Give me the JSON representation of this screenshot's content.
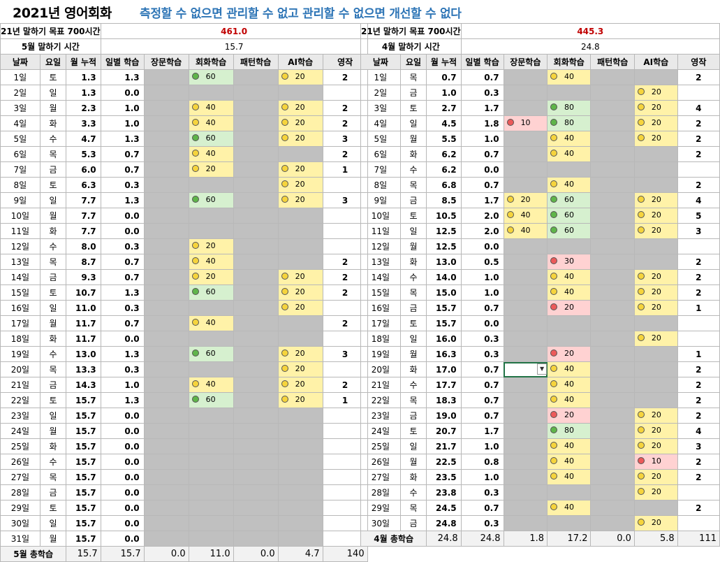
{
  "title": "2021년 영어회화",
  "slogan": "측정할 수 없으면  관리할 수 없고 관리할 수 없으면 개선할 수 없다",
  "columns": [
    "날짜",
    "요일",
    "월 누적",
    "일별 학습",
    "장문학습",
    "회화학습",
    "패턴학습",
    "AI학습",
    "영작"
  ],
  "may": {
    "goal_label": "21년 말하기 목표 700시간",
    "goal_value": "461.0",
    "month_label": "5월 말하기 시간",
    "month_value": "15.7",
    "rows": [
      {
        "day": "1일",
        "dow": "토",
        "cum": "1.3",
        "daily": "1.3",
        "long": null,
        "conv": {
          "v": "60",
          "c": "green"
        },
        "pattern": null,
        "ai": {
          "v": "20",
          "c": "yellow"
        },
        "comp": "2"
      },
      {
        "day": "2일",
        "dow": "일",
        "cum": "1.3",
        "daily": "0.0",
        "long": null,
        "conv": null,
        "pattern": null,
        "ai": null,
        "comp": ""
      },
      {
        "day": "3일",
        "dow": "월",
        "cum": "2.3",
        "daily": "1.0",
        "long": null,
        "conv": {
          "v": "40",
          "c": "yellow"
        },
        "pattern": null,
        "ai": {
          "v": "20",
          "c": "yellow"
        },
        "comp": "2"
      },
      {
        "day": "4일",
        "dow": "화",
        "cum": "3.3",
        "daily": "1.0",
        "long": null,
        "conv": {
          "v": "40",
          "c": "yellow"
        },
        "pattern": null,
        "ai": {
          "v": "20",
          "c": "yellow"
        },
        "comp": "2"
      },
      {
        "day": "5일",
        "dow": "수",
        "cum": "4.7",
        "daily": "1.3",
        "long": null,
        "conv": {
          "v": "60",
          "c": "green"
        },
        "pattern": null,
        "ai": {
          "v": "20",
          "c": "yellow"
        },
        "comp": "3"
      },
      {
        "day": "6일",
        "dow": "목",
        "cum": "5.3",
        "daily": "0.7",
        "long": null,
        "conv": {
          "v": "40",
          "c": "yellow"
        },
        "pattern": null,
        "ai": null,
        "comp": "2"
      },
      {
        "day": "7일",
        "dow": "금",
        "cum": "6.0",
        "daily": "0.7",
        "long": null,
        "conv": {
          "v": "20",
          "c": "yellow"
        },
        "pattern": null,
        "ai": {
          "v": "20",
          "c": "yellow"
        },
        "comp": "1"
      },
      {
        "day": "8일",
        "dow": "토",
        "cum": "6.3",
        "daily": "0.3",
        "long": null,
        "conv": null,
        "pattern": null,
        "ai": {
          "v": "20",
          "c": "yellow"
        },
        "comp": ""
      },
      {
        "day": "9일",
        "dow": "일",
        "cum": "7.7",
        "daily": "1.3",
        "long": null,
        "conv": {
          "v": "60",
          "c": "green"
        },
        "pattern": null,
        "ai": {
          "v": "20",
          "c": "yellow"
        },
        "comp": "3"
      },
      {
        "day": "10일",
        "dow": "월",
        "cum": "7.7",
        "daily": "0.0",
        "long": null,
        "conv": null,
        "pattern": null,
        "ai": null,
        "comp": ""
      },
      {
        "day": "11일",
        "dow": "화",
        "cum": "7.7",
        "daily": "0.0",
        "long": null,
        "conv": null,
        "pattern": null,
        "ai": null,
        "comp": ""
      },
      {
        "day": "12일",
        "dow": "수",
        "cum": "8.0",
        "daily": "0.3",
        "long": null,
        "conv": {
          "v": "20",
          "c": "yellow"
        },
        "pattern": null,
        "ai": null,
        "comp": ""
      },
      {
        "day": "13일",
        "dow": "목",
        "cum": "8.7",
        "daily": "0.7",
        "long": null,
        "conv": {
          "v": "40",
          "c": "yellow"
        },
        "pattern": null,
        "ai": null,
        "comp": "2"
      },
      {
        "day": "14일",
        "dow": "금",
        "cum": "9.3",
        "daily": "0.7",
        "long": null,
        "conv": {
          "v": "20",
          "c": "yellow"
        },
        "pattern": null,
        "ai": {
          "v": "20",
          "c": "yellow"
        },
        "comp": "2"
      },
      {
        "day": "15일",
        "dow": "토",
        "cum": "10.7",
        "daily": "1.3",
        "long": null,
        "conv": {
          "v": "60",
          "c": "green"
        },
        "pattern": null,
        "ai": {
          "v": "20",
          "c": "yellow"
        },
        "comp": "2"
      },
      {
        "day": "16일",
        "dow": "일",
        "cum": "11.0",
        "daily": "0.3",
        "long": null,
        "conv": null,
        "pattern": null,
        "ai": {
          "v": "20",
          "c": "yellow"
        },
        "comp": ""
      },
      {
        "day": "17일",
        "dow": "월",
        "cum": "11.7",
        "daily": "0.7",
        "long": null,
        "conv": {
          "v": "40",
          "c": "yellow"
        },
        "pattern": null,
        "ai": null,
        "comp": "2"
      },
      {
        "day": "18일",
        "dow": "화",
        "cum": "11.7",
        "daily": "0.0",
        "long": null,
        "conv": null,
        "pattern": null,
        "ai": null,
        "comp": ""
      },
      {
        "day": "19일",
        "dow": "수",
        "cum": "13.0",
        "daily": "1.3",
        "long": null,
        "conv": {
          "v": "60",
          "c": "green"
        },
        "pattern": null,
        "ai": {
          "v": "20",
          "c": "yellow"
        },
        "comp": "3"
      },
      {
        "day": "20일",
        "dow": "목",
        "cum": "13.3",
        "daily": "0.3",
        "long": null,
        "conv": null,
        "pattern": null,
        "ai": {
          "v": "20",
          "c": "yellow"
        },
        "comp": ""
      },
      {
        "day": "21일",
        "dow": "금",
        "cum": "14.3",
        "daily": "1.0",
        "long": null,
        "conv": {
          "v": "40",
          "c": "yellow"
        },
        "pattern": null,
        "ai": {
          "v": "20",
          "c": "yellow"
        },
        "comp": "2"
      },
      {
        "day": "22일",
        "dow": "토",
        "cum": "15.7",
        "daily": "1.3",
        "long": null,
        "conv": {
          "v": "60",
          "c": "green"
        },
        "pattern": null,
        "ai": {
          "v": "20",
          "c": "yellow"
        },
        "comp": "1"
      },
      {
        "day": "23일",
        "dow": "일",
        "cum": "15.7",
        "daily": "0.0",
        "long": null,
        "conv": null,
        "pattern": null,
        "ai": null,
        "comp": ""
      },
      {
        "day": "24일",
        "dow": "월",
        "cum": "15.7",
        "daily": "0.0",
        "long": null,
        "conv": null,
        "pattern": null,
        "ai": null,
        "comp": ""
      },
      {
        "day": "25일",
        "dow": "화",
        "cum": "15.7",
        "daily": "0.0",
        "long": null,
        "conv": null,
        "pattern": null,
        "ai": null,
        "comp": ""
      },
      {
        "day": "26일",
        "dow": "수",
        "cum": "15.7",
        "daily": "0.0",
        "long": null,
        "conv": null,
        "pattern": null,
        "ai": null,
        "comp": ""
      },
      {
        "day": "27일",
        "dow": "목",
        "cum": "15.7",
        "daily": "0.0",
        "long": null,
        "conv": null,
        "pattern": null,
        "ai": null,
        "comp": ""
      },
      {
        "day": "28일",
        "dow": "금",
        "cum": "15.7",
        "daily": "0.0",
        "long": null,
        "conv": null,
        "pattern": null,
        "ai": null,
        "comp": ""
      },
      {
        "day": "29일",
        "dow": "토",
        "cum": "15.7",
        "daily": "0.0",
        "long": null,
        "conv": null,
        "pattern": null,
        "ai": null,
        "comp": ""
      },
      {
        "day": "30일",
        "dow": "일",
        "cum": "15.7",
        "daily": "0.0",
        "long": null,
        "conv": null,
        "pattern": null,
        "ai": null,
        "comp": ""
      },
      {
        "day": "31일",
        "dow": "월",
        "cum": "15.7",
        "daily": "0.0",
        "long": null,
        "conv": null,
        "pattern": null,
        "ai": null,
        "comp": ""
      }
    ],
    "totals": {
      "label": "5월 총학습",
      "cum": "15.7",
      "daily": "15.7",
      "long": "0.0",
      "conv": "11.0",
      "pattern": "0.0",
      "ai": "4.7",
      "comp": "140"
    }
  },
  "apr": {
    "goal_label": "21년 말하기 목표 700시간",
    "goal_value": "445.3",
    "month_label": "4월 말하기 시간",
    "month_value": "24.8",
    "rows": [
      {
        "day": "1일",
        "dow": "목",
        "cum": "0.7",
        "daily": "0.7",
        "long": null,
        "conv": {
          "v": "40",
          "c": "yellow"
        },
        "pattern": null,
        "ai": null,
        "comp": "2"
      },
      {
        "day": "2일",
        "dow": "금",
        "cum": "1.0",
        "daily": "0.3",
        "long": null,
        "conv": null,
        "pattern": null,
        "ai": {
          "v": "20",
          "c": "yellow"
        },
        "comp": ""
      },
      {
        "day": "3일",
        "dow": "토",
        "cum": "2.7",
        "daily": "1.7",
        "long": null,
        "conv": {
          "v": "80",
          "c": "green"
        },
        "pattern": null,
        "ai": {
          "v": "20",
          "c": "yellow"
        },
        "comp": "4"
      },
      {
        "day": "4일",
        "dow": "일",
        "cum": "4.5",
        "daily": "1.8",
        "long": {
          "v": "10",
          "c": "red"
        },
        "conv": {
          "v": "80",
          "c": "green"
        },
        "pattern": null,
        "ai": {
          "v": "20",
          "c": "yellow"
        },
        "comp": "2"
      },
      {
        "day": "5일",
        "dow": "월",
        "cum": "5.5",
        "daily": "1.0",
        "long": null,
        "conv": {
          "v": "40",
          "c": "yellow"
        },
        "pattern": null,
        "ai": {
          "v": "20",
          "c": "yellow"
        },
        "comp": "2"
      },
      {
        "day": "6일",
        "dow": "화",
        "cum": "6.2",
        "daily": "0.7",
        "long": null,
        "conv": {
          "v": "40",
          "c": "yellow"
        },
        "pattern": null,
        "ai": null,
        "comp": "2"
      },
      {
        "day": "7일",
        "dow": "수",
        "cum": "6.2",
        "daily": "0.0",
        "long": null,
        "conv": null,
        "pattern": null,
        "ai": null,
        "comp": ""
      },
      {
        "day": "8일",
        "dow": "목",
        "cum": "6.8",
        "daily": "0.7",
        "long": null,
        "conv": {
          "v": "40",
          "c": "yellow"
        },
        "pattern": null,
        "ai": null,
        "comp": "2"
      },
      {
        "day": "9일",
        "dow": "금",
        "cum": "8.5",
        "daily": "1.7",
        "long": {
          "v": "20",
          "c": "yellow"
        },
        "conv": {
          "v": "60",
          "c": "green"
        },
        "pattern": null,
        "ai": {
          "v": "20",
          "c": "yellow"
        },
        "comp": "4"
      },
      {
        "day": "10일",
        "dow": "토",
        "cum": "10.5",
        "daily": "2.0",
        "long": {
          "v": "40",
          "c": "yellow"
        },
        "conv": {
          "v": "60",
          "c": "green"
        },
        "pattern": null,
        "ai": {
          "v": "20",
          "c": "yellow"
        },
        "comp": "5"
      },
      {
        "day": "11일",
        "dow": "일",
        "cum": "12.5",
        "daily": "2.0",
        "long": {
          "v": "40",
          "c": "yellow"
        },
        "conv": {
          "v": "60",
          "c": "green"
        },
        "pattern": null,
        "ai": {
          "v": "20",
          "c": "yellow"
        },
        "comp": "3"
      },
      {
        "day": "12일",
        "dow": "월",
        "cum": "12.5",
        "daily": "0.0",
        "long": null,
        "conv": null,
        "pattern": null,
        "ai": null,
        "comp": ""
      },
      {
        "day": "13일",
        "dow": "화",
        "cum": "13.0",
        "daily": "0.5",
        "long": null,
        "conv": {
          "v": "30",
          "c": "red"
        },
        "pattern": null,
        "ai": null,
        "comp": "2"
      },
      {
        "day": "14일",
        "dow": "수",
        "cum": "14.0",
        "daily": "1.0",
        "long": null,
        "conv": {
          "v": "40",
          "c": "yellow"
        },
        "pattern": null,
        "ai": {
          "v": "20",
          "c": "yellow"
        },
        "comp": "2"
      },
      {
        "day": "15일",
        "dow": "목",
        "cum": "15.0",
        "daily": "1.0",
        "long": null,
        "conv": {
          "v": "40",
          "c": "yellow"
        },
        "pattern": null,
        "ai": {
          "v": "20",
          "c": "yellow"
        },
        "comp": "2"
      },
      {
        "day": "16일",
        "dow": "금",
        "cum": "15.7",
        "daily": "0.7",
        "long": null,
        "conv": {
          "v": "20",
          "c": "red"
        },
        "pattern": null,
        "ai": {
          "v": "20",
          "c": "yellow"
        },
        "comp": "1"
      },
      {
        "day": "17일",
        "dow": "토",
        "cum": "15.7",
        "daily": "0.0",
        "long": null,
        "conv": null,
        "pattern": null,
        "ai": null,
        "comp": ""
      },
      {
        "day": "18일",
        "dow": "일",
        "cum": "16.0",
        "daily": "0.3",
        "long": null,
        "conv": null,
        "pattern": null,
        "ai": {
          "v": "20",
          "c": "yellow"
        },
        "comp": ""
      },
      {
        "day": "19일",
        "dow": "월",
        "cum": "16.3",
        "daily": "0.3",
        "long": null,
        "conv": {
          "v": "20",
          "c": "red"
        },
        "pattern": null,
        "ai": null,
        "comp": "1"
      },
      {
        "day": "20일",
        "dow": "화",
        "cum": "17.0",
        "daily": "0.7",
        "long": null,
        "conv": {
          "v": "40",
          "c": "yellow"
        },
        "pattern": null,
        "ai": null,
        "comp": "2"
      },
      {
        "day": "21일",
        "dow": "수",
        "cum": "17.7",
        "daily": "0.7",
        "long": null,
        "conv": {
          "v": "40",
          "c": "yellow"
        },
        "pattern": null,
        "ai": null,
        "comp": "2"
      },
      {
        "day": "22일",
        "dow": "목",
        "cum": "18.3",
        "daily": "0.7",
        "long": null,
        "conv": {
          "v": "40",
          "c": "yellow"
        },
        "pattern": null,
        "ai": null,
        "comp": "2"
      },
      {
        "day": "23일",
        "dow": "금",
        "cum": "19.0",
        "daily": "0.7",
        "long": null,
        "conv": {
          "v": "20",
          "c": "red"
        },
        "pattern": null,
        "ai": {
          "v": "20",
          "c": "yellow"
        },
        "comp": "2"
      },
      {
        "day": "24일",
        "dow": "토",
        "cum": "20.7",
        "daily": "1.7",
        "long": null,
        "conv": {
          "v": "80",
          "c": "green"
        },
        "pattern": null,
        "ai": {
          "v": "20",
          "c": "yellow"
        },
        "comp": "4"
      },
      {
        "day": "25일",
        "dow": "일",
        "cum": "21.7",
        "daily": "1.0",
        "long": null,
        "conv": {
          "v": "40",
          "c": "yellow"
        },
        "pattern": null,
        "ai": {
          "v": "20",
          "c": "yellow"
        },
        "comp": "3"
      },
      {
        "day": "26일",
        "dow": "월",
        "cum": "22.5",
        "daily": "0.8",
        "long": null,
        "conv": {
          "v": "40",
          "c": "yellow"
        },
        "pattern": null,
        "ai": {
          "v": "10",
          "c": "red"
        },
        "comp": "2"
      },
      {
        "day": "27일",
        "dow": "화",
        "cum": "23.5",
        "daily": "1.0",
        "long": null,
        "conv": {
          "v": "40",
          "c": "yellow"
        },
        "pattern": null,
        "ai": {
          "v": "20",
          "c": "yellow"
        },
        "comp": "2"
      },
      {
        "day": "28일",
        "dow": "수",
        "cum": "23.8",
        "daily": "0.3",
        "long": null,
        "conv": null,
        "pattern": null,
        "ai": {
          "v": "20",
          "c": "yellow"
        },
        "comp": ""
      },
      {
        "day": "29일",
        "dow": "목",
        "cum": "24.5",
        "daily": "0.7",
        "long": null,
        "conv": {
          "v": "40",
          "c": "yellow"
        },
        "pattern": null,
        "ai": null,
        "comp": "2"
      },
      {
        "day": "30일",
        "dow": "금",
        "cum": "24.8",
        "daily": "0.3",
        "long": null,
        "conv": null,
        "pattern": null,
        "ai": {
          "v": "20",
          "c": "yellow"
        },
        "comp": ""
      }
    ],
    "totals": {
      "label": "4월 총학습",
      "cum": "24.8",
      "daily": "24.8",
      "long": "1.8",
      "conv": "17.2",
      "pattern": "0.0",
      "ai": "5.8",
      "comp": "111"
    }
  },
  "selected_cell": {
    "table": "apr",
    "row": 19,
    "col": "long"
  },
  "icons": {
    "dropdown": "dropdown-arrow-icon",
    "level": "level-dot-icon"
  },
  "colors": {
    "title": "#000000",
    "slogan": "#2e75b6",
    "goal": "#c00000",
    "gray": "#c0c0c0",
    "red": "#ffd2d2",
    "yellow": "#fff2a8",
    "green": "#d6f0cf"
  }
}
